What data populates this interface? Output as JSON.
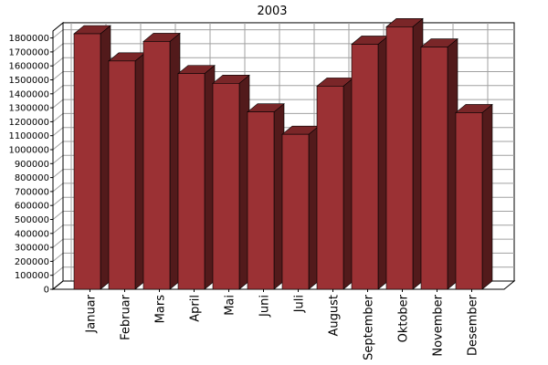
{
  "chart_data": {
    "type": "bar",
    "title": "2003",
    "xlabel": "",
    "ylabel": "",
    "categories": [
      "Januar",
      "Februar",
      "Mars",
      "April",
      "Mai",
      "Juni",
      "Juli",
      "August",
      "September",
      "Oktober",
      "November",
      "Desember"
    ],
    "values": [
      1830000,
      1635000,
      1775000,
      1545000,
      1475000,
      1270000,
      1110000,
      1455000,
      1755000,
      1880000,
      1735000,
      1265000
    ],
    "ylim": [
      0,
      1850000
    ],
    "ytick_labels": [
      "0",
      "100000",
      "200000",
      "300000",
      "400000",
      "500000",
      "600000",
      "700000",
      "800000",
      "900000",
      "1000000",
      "1100000",
      "1200000",
      "1300000",
      "1400000",
      "1500000",
      "1600000",
      "1700000",
      "1800000"
    ],
    "grid": true,
    "bar_color": "#9b3134",
    "bar_side_color": "#521a1b",
    "bar_top_color": "#7a2628",
    "grid_color": "#a0a0a0",
    "floor_color": "#ffffff"
  }
}
